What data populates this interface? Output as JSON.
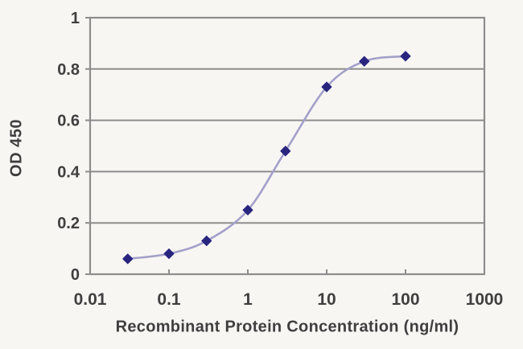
{
  "figure": {
    "background": "#f8f6f3"
  },
  "chart_data": {
    "type": "line",
    "title": "",
    "xlabel": "Recombinant Protein Concentration (ng/ml)",
    "ylabel": "OD 450",
    "x_scale": "log",
    "xlim": [
      0.01,
      1000
    ],
    "ylim": [
      0,
      1
    ],
    "x_ticks": [
      0.01,
      0.1,
      1,
      10,
      100,
      1000
    ],
    "x_tick_labels": [
      "0.01",
      "0.1",
      "1",
      "10",
      "100",
      "1000"
    ],
    "y_ticks": [
      0,
      0.2,
      0.4,
      0.6,
      0.8,
      1
    ],
    "y_tick_labels": [
      "0",
      "0.2",
      "0.4",
      "0.6",
      "0.8",
      "1"
    ],
    "grid": "horizontal",
    "legend": "none",
    "series": [
      {
        "name": "OD 450",
        "x": [
          0.03,
          0.1,
          0.3,
          1,
          3,
          10,
          30,
          100
        ],
        "y": [
          0.06,
          0.08,
          0.13,
          0.25,
          0.48,
          0.73,
          0.83,
          0.85
        ],
        "marker": "diamond",
        "smooth": true
      }
    ],
    "colors": {
      "axis": "#8d8d8d",
      "grid": "#8d8d8d",
      "tick_text": "#3f3f3f",
      "line": "#a3a1c9",
      "marker": "#29257f"
    }
  }
}
